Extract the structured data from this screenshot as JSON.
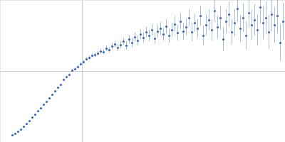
{
  "chart_data": {
    "type": "scatter",
    "x": [
      17,
      21,
      25,
      29,
      33,
      37,
      41,
      45,
      49,
      53,
      57,
      61,
      65,
      69,
      73,
      77,
      81,
      85,
      89,
      93,
      97,
      101,
      105,
      109,
      113,
      117,
      121,
      125,
      129,
      133,
      137,
      141,
      145,
      149,
      153,
      157,
      161,
      165,
      169,
      173,
      177,
      181,
      185,
      189,
      193,
      197,
      201,
      205,
      209,
      213,
      217,
      221,
      225,
      229,
      233,
      237,
      241,
      245,
      249,
      253,
      257,
      261,
      265,
      269,
      273,
      277,
      281,
      285,
      289,
      293,
      297,
      301,
      305,
      309,
      313,
      317,
      321,
      325,
      329,
      333,
      337,
      341,
      345,
      349,
      353,
      357,
      361,
      365,
      369,
      373,
      377,
      381,
      385,
      389,
      393,
      397
    ],
    "values": [
      10,
      12,
      15,
      18,
      22,
      26,
      30,
      35,
      39,
      44,
      48,
      53,
      57,
      62,
      67,
      72,
      77,
      81,
      88,
      92,
      95,
      101,
      103,
      106,
      110,
      113,
      117,
      119,
      122,
      123,
      125,
      128,
      127,
      132,
      130,
      135,
      138,
      133,
      137,
      142,
      136,
      145,
      140,
      148,
      143,
      152,
      147,
      155,
      150,
      158,
      146,
      156,
      160,
      152,
      163,
      150,
      158,
      166,
      154,
      170,
      156,
      162,
      175,
      155,
      168,
      160,
      178,
      150,
      165,
      172,
      158,
      185,
      162,
      175,
      145,
      170,
      180,
      155,
      168,
      188,
      160,
      175,
      150,
      182,
      165,
      172,
      158,
      190,
      168,
      175,
      155,
      180,
      165,
      178,
      140,
      170
    ],
    "errors": [
      0.5,
      0.5,
      0.5,
      0.5,
      0.5,
      0.5,
      0.5,
      0.5,
      0.5,
      0.5,
      1,
      1,
      1,
      1,
      1,
      1,
      1,
      1,
      1.5,
      1.5,
      2,
      2,
      2,
      2.5,
      2.5,
      2.5,
      3,
      3,
      3,
      3,
      3,
      3.5,
      3.5,
      4,
      4,
      4.5,
      4.5,
      5,
      5,
      5,
      6,
      6,
      6.5,
      6.5,
      7,
      7,
      7.5,
      7.5,
      8,
      8,
      8,
      9,
      9,
      9,
      10,
      10,
      10,
      11,
      11,
      11,
      12,
      12,
      12,
      13,
      13,
      13,
      14,
      14,
      15,
      15,
      15,
      16,
      16,
      17,
      17,
      17,
      18,
      18,
      19,
      19,
      19,
      20,
      20,
      21,
      21,
      22,
      22,
      23,
      23,
      23,
      24,
      24,
      25,
      25,
      26,
      26
    ],
    "color": "#3b67c2",
    "marker": "circle",
    "xlim": [
      0,
      400
    ],
    "ylim": [
      0,
      200
    ],
    "xticks": [
      115
    ],
    "yticks": [
      100
    ],
    "grid": true,
    "tick_labels": false
  }
}
